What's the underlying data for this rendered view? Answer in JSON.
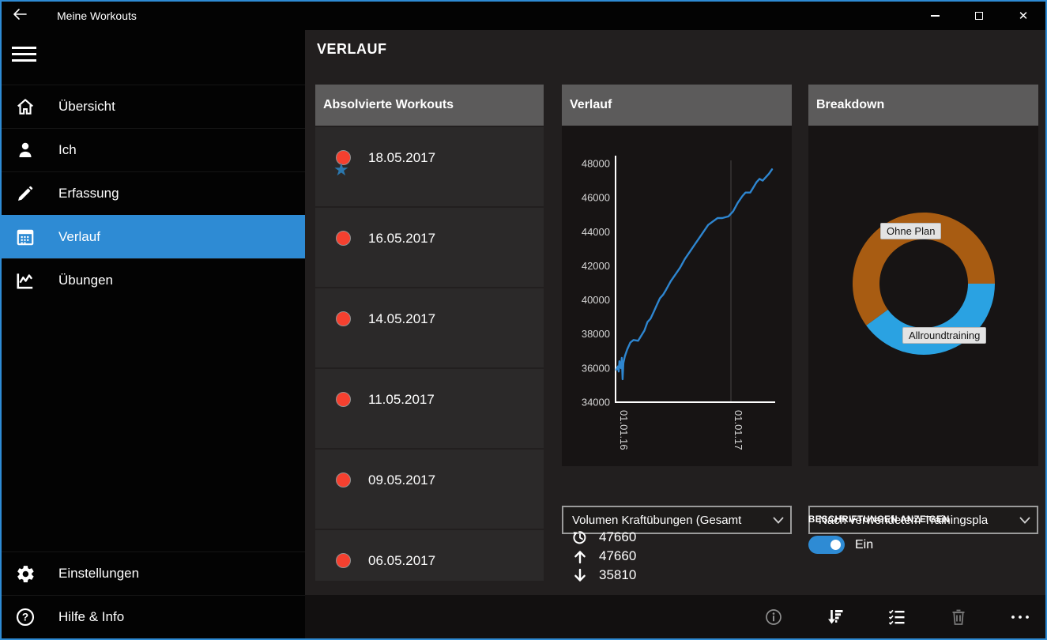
{
  "window": {
    "title": "Meine Workouts"
  },
  "colors": {
    "accent": "#2e8bd4",
    "line": "#2e86d0",
    "donut_orange": "#a85c12",
    "donut_blue": "#2aa2e2",
    "workout_dot": "#f5402f",
    "star": "#2b77ad",
    "panel_header_bg": "#5c5b5b"
  },
  "sidebar": {
    "items": [
      {
        "label": "Übersicht",
        "icon": "home",
        "selected": false
      },
      {
        "label": "Ich",
        "icon": "person",
        "selected": false
      },
      {
        "label": "Erfassung",
        "icon": "pencil",
        "selected": false
      },
      {
        "label": "Verlauf",
        "icon": "calendar",
        "selected": true
      },
      {
        "label": "Übungen",
        "icon": "line-chart",
        "selected": false
      }
    ],
    "bottom_items": [
      {
        "label": "Einstellungen",
        "icon": "gear"
      },
      {
        "label": "Hilfe & Info",
        "icon": "help"
      }
    ]
  },
  "page_title": "VERLAUF",
  "workouts_panel": {
    "header": "Absolvierte Workouts",
    "items": [
      {
        "date": "18.05.2017",
        "starred": true
      },
      {
        "date": "16.05.2017",
        "starred": false
      },
      {
        "date": "14.05.2017",
        "starred": false
      },
      {
        "date": "11.05.2017",
        "starred": false
      },
      {
        "date": "09.05.2017",
        "starred": false
      },
      {
        "date": "06.05.2017",
        "starred": false
      }
    ]
  },
  "chart_panel": {
    "header": "Verlauf",
    "dropdown_value": "Volumen Kraftübungen (Gesamt",
    "stats": [
      {
        "icon": "history",
        "value": "47660"
      },
      {
        "icon": "arrow-up",
        "value": "47660"
      },
      {
        "icon": "arrow-down",
        "value": "35810"
      }
    ]
  },
  "breakdown_panel": {
    "header": "Breakdown",
    "dropdown_value": "Nach verwendetem Trainingspla",
    "caption": "BESCHRIFTUNGEN ANZEIGEN",
    "toggle_label": "Ein",
    "toggle_state": "on"
  },
  "command_bar": {
    "items": [
      {
        "name": "info",
        "enabled": false
      },
      {
        "name": "sort-descending",
        "enabled": true
      },
      {
        "name": "multi-select",
        "enabled": true
      },
      {
        "name": "delete",
        "enabled": false
      },
      {
        "name": "more",
        "enabled": true
      }
    ]
  },
  "chart_data": [
    {
      "type": "line",
      "title": "Verlauf",
      "ylim": [
        34000,
        48000
      ],
      "yticks": [
        48000,
        46000,
        44000,
        42000,
        40000,
        38000,
        36000,
        34000
      ],
      "xticks": [
        "01.01.16",
        "01.01.17"
      ],
      "xtick_positions": [
        0.0,
        0.736
      ],
      "grid": "x-only",
      "series": [
        {
          "name": "Volumen Kraftübungen (Gesamt)",
          "points": [
            [
              0.0,
              35900
            ],
            [
              0.01,
              36100
            ],
            [
              0.015,
              35800
            ],
            [
              0.02,
              36400
            ],
            [
              0.03,
              36000
            ],
            [
              0.035,
              36600
            ],
            [
              0.04,
              35350
            ],
            [
              0.045,
              36300
            ],
            [
              0.055,
              36700
            ],
            [
              0.07,
              37100
            ],
            [
              0.09,
              37500
            ],
            [
              0.11,
              37650
            ],
            [
              0.14,
              37600
            ],
            [
              0.16,
              37900
            ],
            [
              0.18,
              38200
            ],
            [
              0.2,
              38700
            ],
            [
              0.22,
              38900
            ],
            [
              0.24,
              39300
            ],
            [
              0.26,
              39700
            ],
            [
              0.28,
              40100
            ],
            [
              0.3,
              40300
            ],
            [
              0.32,
              40600
            ],
            [
              0.35,
              41100
            ],
            [
              0.38,
              41500
            ],
            [
              0.41,
              41900
            ],
            [
              0.44,
              42400
            ],
            [
              0.47,
              42800
            ],
            [
              0.5,
              43200
            ],
            [
              0.53,
              43600
            ],
            [
              0.56,
              44000
            ],
            [
              0.59,
              44400
            ],
            [
              0.62,
              44600
            ],
            [
              0.65,
              44800
            ],
            [
              0.68,
              44800
            ],
            [
              0.72,
              44900
            ],
            [
              0.75,
              45200
            ],
            [
              0.78,
              45700
            ],
            [
              0.81,
              46100
            ],
            [
              0.83,
              46300
            ],
            [
              0.86,
              46300
            ],
            [
              0.88,
              46600
            ],
            [
              0.9,
              46900
            ],
            [
              0.92,
              47100
            ],
            [
              0.94,
              47000
            ],
            [
              0.96,
              47200
            ],
            [
              0.98,
              47400
            ],
            [
              1.0,
              47660
            ]
          ]
        }
      ],
      "summary": {
        "last": 47660,
        "max": 47660,
        "min": 35810
      }
    },
    {
      "type": "donut",
      "title": "Breakdown",
      "start_angle_deg": 0,
      "direction": "clockwise",
      "slices": [
        {
          "label": "Allroundtraining",
          "color": "#2aa2e2",
          "fraction": 0.4
        },
        {
          "label": "Ohne Plan",
          "color": "#a85c12",
          "fraction": 0.6
        }
      ]
    }
  ]
}
